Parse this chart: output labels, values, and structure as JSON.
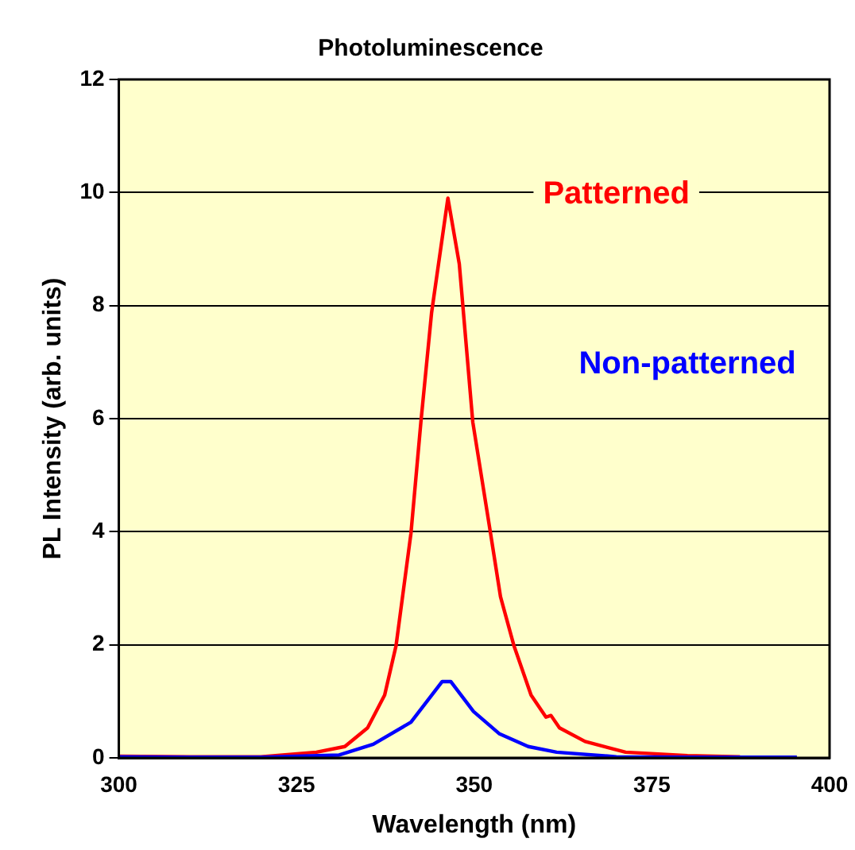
{
  "chart_data": {
    "type": "line",
    "title": "Photoluminescence",
    "xlabel": "Wavelength (nm)",
    "ylabel": "PL Intensity (arb. units)",
    "xlim": [
      300,
      400
    ],
    "xticks": [
      300,
      325,
      350,
      375,
      400
    ],
    "ylim": [
      0,
      12
    ],
    "yticks": [
      0,
      2,
      4,
      6,
      8,
      10,
      12
    ],
    "grid": "y",
    "legend": false,
    "marker": "none",
    "line_style": "solid",
    "series": [
      {
        "name": "Patterned",
        "color": "#ff0000",
        "x": [
          300,
          310,
          320,
          327.8,
          331.8,
          335,
          337.4,
          339,
          341.1,
          342.5,
          344,
          346.3,
          347.9,
          349.8,
          352.3,
          353.7,
          355.6,
          358,
          360.1,
          360.8,
          362,
          365.6,
          371.3,
          380,
          387.4
        ],
        "values": [
          0.03,
          0.02,
          0.02,
          0.1,
          0.2,
          0.53,
          1.11,
          1.98,
          3.97,
          5.94,
          7.87,
          9.9,
          8.74,
          5.94,
          3.97,
          2.85,
          1.98,
          1.11,
          0.72,
          0.75,
          0.53,
          0.29,
          0.1,
          0.04,
          0.02
        ]
      },
      {
        "name": "Non-patterned",
        "color": "#0000ff",
        "x": [
          300,
          310,
          320,
          331,
          335.8,
          341.1,
          345.5,
          346.7,
          349.9,
          353.5,
          357.6,
          361.6,
          370,
          380,
          395.4
        ],
        "values": [
          0.02,
          0.01,
          0.01,
          0.05,
          0.24,
          0.63,
          1.35,
          1.35,
          0.82,
          0.43,
          0.2,
          0.1,
          0.02,
          0.01,
          0.01
        ]
      }
    ]
  }
}
